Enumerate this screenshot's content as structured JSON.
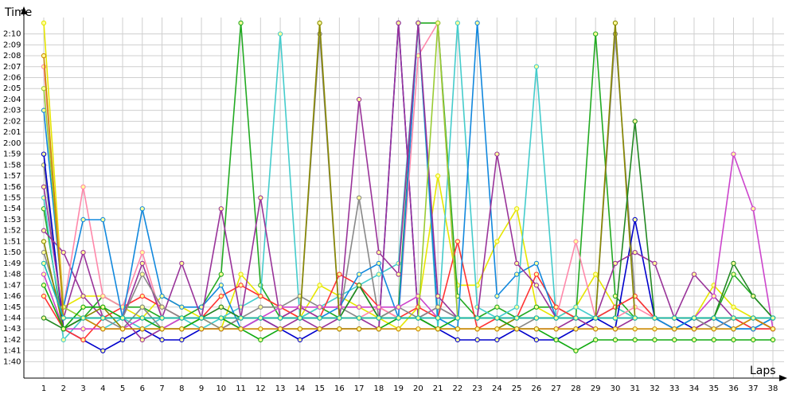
{
  "chart_data": {
    "type": "line",
    "ylabel": "Time",
    "xlabel": "Laps",
    "x": [
      1,
      2,
      3,
      4,
      5,
      6,
      7,
      8,
      9,
      10,
      11,
      12,
      13,
      14,
      15,
      16,
      17,
      18,
      19,
      20,
      21,
      22,
      23,
      24,
      25,
      26,
      27,
      28,
      29,
      30,
      31,
      32,
      33,
      34,
      35,
      36,
      37,
      38
    ],
    "y_ticks": [
      "1:40",
      "1:41",
      "1:42",
      "1:43",
      "1:44",
      "1:45",
      "1:46",
      "1:47",
      "1:48",
      "1:49",
      "1:50",
      "1:51",
      "1:52",
      "1:53",
      "1:54",
      "1:55",
      "1:56",
      "1:57",
      "1:58",
      "1:59",
      "2:00",
      "2:01",
      "2:02",
      "2:03",
      "2:04",
      "2:05",
      "2:06",
      "2:07",
      "2:08",
      "2:09",
      "2:10"
    ],
    "y_unit": "seconds",
    "xlim": [
      1,
      38
    ],
    "ylim": [
      98.5,
      131.5
    ],
    "grid": true,
    "series": [
      {
        "color": "#e6e600",
        "values": [
          131,
          105,
          106,
          106,
          105,
          104,
          106,
          105,
          104,
          103,
          108,
          106,
          105,
          104,
          107,
          106,
          105,
          104,
          103,
          105,
          117,
          107,
          107,
          111,
          114,
          105,
          104,
          105,
          108,
          105,
          104,
          104,
          103,
          104,
          107,
          105,
          104,
          103
        ]
      },
      {
        "color": "#22aa22",
        "values": [
          114,
          103,
          104,
          106,
          105,
          105,
          104,
          104,
          105,
          108,
          131,
          107,
          104,
          104,
          105,
          104,
          107,
          104,
          105,
          131,
          131,
          106,
          104,
          105,
          104,
          105,
          105,
          104,
          130,
          106,
          104,
          104,
          104,
          104,
          104,
          108,
          106,
          104
        ]
      },
      {
        "color": "#44cccc",
        "values": [
          115,
          102,
          104,
          103,
          104,
          103,
          104,
          104,
          103,
          104,
          105,
          106,
          130,
          104,
          105,
          106,
          107,
          108,
          109,
          131,
          103,
          131,
          105,
          104,
          105,
          127,
          104,
          105,
          104,
          105,
          104,
          104,
          103,
          104,
          104,
          104,
          103,
          104
        ]
      },
      {
        "color": "#888888",
        "values": [
          118,
          103,
          104,
          104,
          103,
          105,
          103,
          104,
          104,
          105,
          104,
          104,
          104,
          104,
          130,
          104,
          115,
          104,
          104,
          131,
          104,
          104,
          104,
          104,
          103,
          104,
          104,
          104,
          104,
          130,
          106,
          104,
          104,
          104,
          104,
          104,
          104,
          103
        ]
      },
      {
        "color": "#0000cc",
        "values": [
          119,
          103,
          102,
          101,
          102,
          103,
          102,
          102,
          103,
          103,
          103,
          104,
          103,
          102,
          103,
          103,
          103,
          103,
          131,
          104,
          103,
          102,
          102,
          102,
          103,
          102,
          102,
          103,
          104,
          103,
          113,
          104,
          104,
          103,
          104,
          103,
          103,
          103
        ]
      },
      {
        "color": "#993399",
        "values": [
          112,
          110,
          106,
          104,
          104,
          102,
          103,
          103,
          103,
          103,
          104,
          104,
          103,
          104,
          103,
          104,
          104,
          103,
          131,
          104,
          105,
          104,
          104,
          104,
          103,
          103,
          103,
          104,
          103,
          103,
          104,
          104,
          103,
          103,
          104,
          104,
          104,
          103
        ]
      },
      {
        "color": "#ff3333",
        "values": [
          106,
          103,
          102,
          104,
          105,
          106,
          105,
          104,
          104,
          106,
          107,
          106,
          105,
          104,
          104,
          108,
          107,
          105,
          104,
          105,
          104,
          111,
          103,
          104,
          104,
          108,
          105,
          104,
          104,
          105,
          106,
          104,
          104,
          104,
          104,
          104,
          103,
          103
        ]
      },
      {
        "color": "#ff88aa",
        "values": [
          127,
          105,
          116,
          106,
          105,
          110,
          104,
          104,
          104,
          104,
          104,
          104,
          104,
          105,
          104,
          104,
          104,
          105,
          104,
          128,
          131,
          104,
          104,
          104,
          104,
          104,
          104,
          111,
          104,
          104,
          105,
          104,
          104,
          104,
          104,
          104,
          104,
          103
        ]
      },
      {
        "color": "#1188dd",
        "values": [
          123,
          105,
          113,
          113,
          104,
          114,
          106,
          105,
          105,
          107,
          103,
          104,
          104,
          104,
          104,
          105,
          108,
          109,
          104,
          131,
          104,
          103,
          131,
          106,
          108,
          109,
          104,
          104,
          104,
          104,
          104,
          104,
          103,
          104,
          104,
          103,
          103,
          104
        ]
      },
      {
        "color": "#993399",
        "values": [
          116,
          104,
          110,
          104,
          104,
          109,
          104,
          109,
          104,
          114,
          104,
          115,
          104,
          105,
          104,
          104,
          124,
          110,
          108,
          131,
          106,
          104,
          104,
          119,
          109,
          107,
          104,
          104,
          104,
          109,
          110,
          109,
          104,
          108,
          106,
          104,
          104,
          103
        ]
      },
      {
        "color": "#888888",
        "values": [
          110,
          104,
          104,
          104,
          104,
          108,
          105,
          104,
          104,
          103,
          104,
          105,
          105,
          106,
          105,
          105,
          104,
          104,
          105,
          104,
          105,
          104,
          104,
          104,
          104,
          104,
          104,
          104,
          104,
          104,
          104,
          104,
          104,
          104,
          103,
          104,
          104,
          104
        ]
      },
      {
        "color": "#cc44cc",
        "values": [
          108,
          103,
          103,
          103,
          103,
          104,
          103,
          104,
          104,
          104,
          103,
          104,
          105,
          105,
          105,
          105,
          105,
          105,
          105,
          106,
          104,
          104,
          104,
          104,
          104,
          104,
          104,
          104,
          104,
          104,
          104,
          104,
          104,
          104,
          106,
          119,
          114,
          103
        ]
      },
      {
        "color": "#888800",
        "values": [
          111,
          103,
          104,
          105,
          103,
          103,
          103,
          103,
          104,
          104,
          104,
          104,
          104,
          104,
          131,
          104,
          104,
          104,
          104,
          104,
          103,
          103,
          103,
          103,
          104,
          104,
          104,
          104,
          104,
          131,
          104,
          104,
          104,
          104,
          104,
          104,
          104,
          104
        ]
      },
      {
        "color": "#99cc33",
        "values": [
          125,
          105,
          104,
          104,
          104,
          104,
          104,
          104,
          104,
          104,
          104,
          104,
          104,
          104,
          104,
          104,
          104,
          104,
          104,
          104,
          131,
          104,
          104,
          104,
          104,
          104,
          104,
          104,
          104,
          104,
          104,
          104,
          104,
          104,
          104,
          104,
          104,
          104
        ]
      },
      {
        "color": "#228822",
        "values": [
          104,
          103,
          104,
          104,
          104,
          104,
          104,
          104,
          104,
          105,
          104,
          104,
          104,
          104,
          104,
          104,
          107,
          104,
          104,
          104,
          104,
          104,
          104,
          104,
          104,
          104,
          104,
          104,
          104,
          104,
          122,
          104,
          104,
          104,
          104,
          109,
          106,
          104
        ]
      },
      {
        "color": "#11aa11",
        "values": [
          107,
          103,
          105,
          105,
          104,
          104,
          103,
          103,
          104,
          104,
          103,
          102,
          103,
          103,
          103,
          103,
          103,
          103,
          104,
          104,
          103,
          104,
          104,
          104,
          103,
          103,
          102,
          101,
          102,
          102,
          102,
          102,
          102,
          102,
          102,
          102,
          102,
          102
        ]
      },
      {
        "color": "#cc8800",
        "values": [
          128,
          104,
          104,
          103,
          103,
          103,
          103,
          103,
          103,
          103,
          103,
          103,
          103,
          103,
          103,
          103,
          103,
          103,
          103,
          103,
          103,
          103,
          103,
          103,
          103,
          103,
          103,
          103,
          103,
          103,
          103,
          103,
          103,
          103,
          103,
          103,
          104,
          103
        ]
      },
      {
        "color": "#11bbbb",
        "values": [
          109,
          104,
          104,
          104,
          104,
          104,
          104,
          104,
          104,
          104,
          104,
          104,
          104,
          104,
          104,
          104,
          104,
          104,
          104,
          104,
          104,
          104,
          104,
          104,
          104,
          104,
          104,
          104,
          104,
          104,
          104,
          104,
          104,
          104,
          104,
          104,
          104,
          104
        ]
      }
    ]
  }
}
